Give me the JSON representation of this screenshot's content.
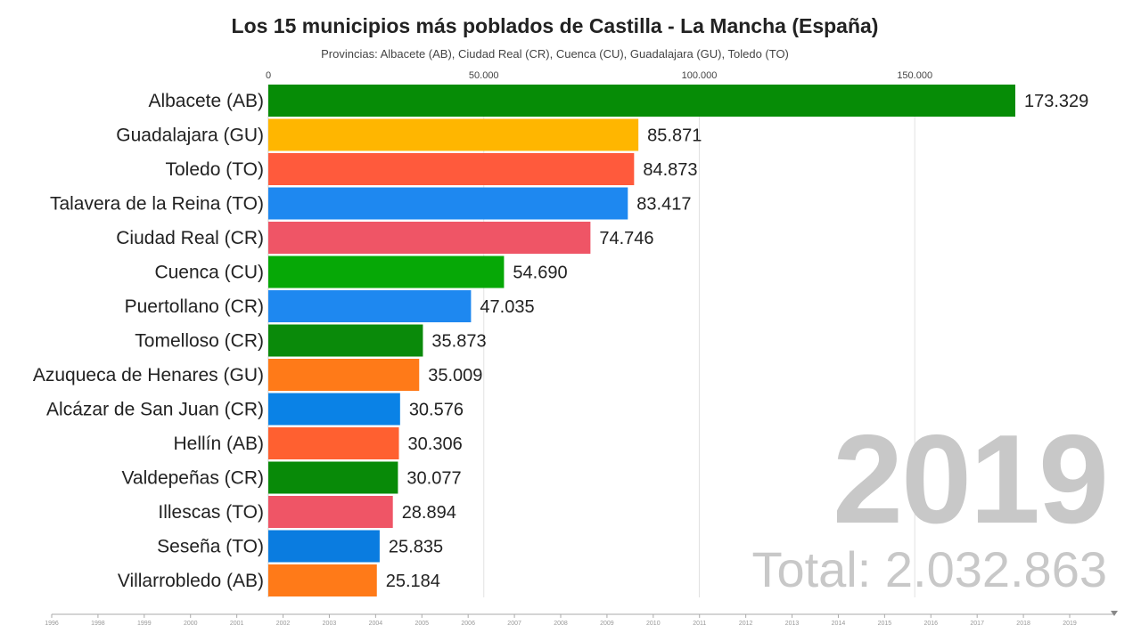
{
  "title": "Los 15 municipios más poblados de Castilla - La Mancha (España)",
  "subtitle": "Provincias: Albacete (AB), Ciudad Real (CR), Cuenca (CU), Guadalajara (GU), Toledo (TO)",
  "year": "2019",
  "total": "Total: 2.032.863",
  "chart_data": {
    "type": "bar",
    "orientation": "horizontal",
    "title": "Los 15 municipios más poblados de Castilla - La Mancha (España)",
    "xlim": [
      0,
      173329
    ],
    "x_ticks": [
      0,
      50000,
      100000,
      150000
    ],
    "x_tick_labels": [
      "0",
      "50.000",
      "100.000",
      "150.000"
    ],
    "axis_position": "top",
    "grid": true,
    "categories": [
      "Albacete (AB)",
      "Guadalajara (GU)",
      "Toledo (TO)",
      "Talavera de la Reina (TO)",
      "Ciudad Real (CR)",
      "Cuenca (CU)",
      "Puertollano (CR)",
      "Tomelloso (CR)",
      "Azuqueca de Henares (GU)",
      "Alcázar de San Juan (CR)",
      "Hellín (AB)",
      "Valdepeñas (CR)",
      "Illescas (TO)",
      "Seseña (TO)",
      "Villarrobledo (AB)"
    ],
    "values": [
      173329,
      85871,
      84873,
      83417,
      74746,
      54690,
      47035,
      35873,
      35009,
      30576,
      30306,
      30077,
      28894,
      25835,
      25184
    ],
    "value_labels": [
      "173.329",
      "85.871",
      "84.873",
      "83.417",
      "74.746",
      "54.690",
      "47.035",
      "35.873",
      "35.009",
      "30.576",
      "30.306",
      "30.077",
      "28.894",
      "25.835",
      "25.184"
    ],
    "colors": [
      "#068c06",
      "#ffb600",
      "#ff5a3c",
      "#1e88f0",
      "#ef5566",
      "#06a806",
      "#1e88f0",
      "#0a8a0a",
      "#ff7a18",
      "#0a82e6",
      "#ff6030",
      "#088a08",
      "#ef5566",
      "#0a7ce0",
      "#ff7a18"
    ],
    "timeline": {
      "years": [
        "1996",
        "1998",
        "1999",
        "2000",
        "2001",
        "2002",
        "2003",
        "2004",
        "2005",
        "2006",
        "2007",
        "2008",
        "2009",
        "2010",
        "2011",
        "2012",
        "2013",
        "2014",
        "2015",
        "2016",
        "2017",
        "2018",
        "2019"
      ],
      "current": "2019"
    }
  }
}
